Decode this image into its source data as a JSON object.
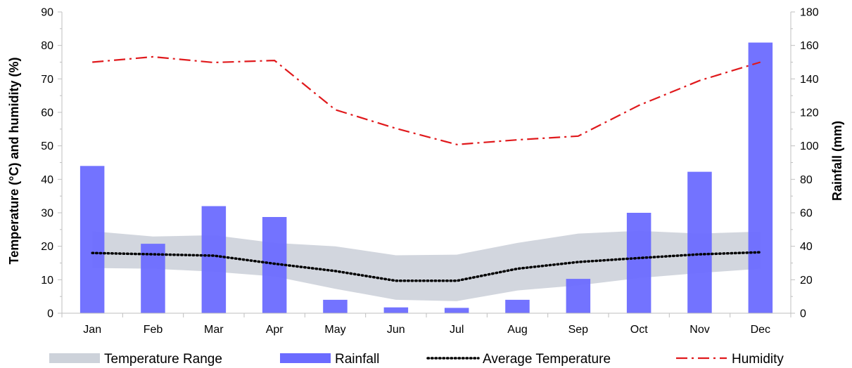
{
  "chart_data": {
    "type": "bar",
    "categories": [
      "Jan",
      "Feb",
      "Mar",
      "Apr",
      "May",
      "Jun",
      "Jul",
      "Aug",
      "Sep",
      "Oct",
      "Nov",
      "Dec"
    ],
    "y_left": {
      "label": "Temperature (°C) and humidity (%)",
      "ylim": [
        0,
        90
      ],
      "ticks": [
        "0",
        "10",
        "20",
        "30",
        "40",
        "50",
        "60",
        "70",
        "80",
        "90"
      ]
    },
    "y_right": {
      "label": "Rainfall (mm)",
      "ylim": [
        0,
        180
      ],
      "ticks": [
        "0",
        "20",
        "40",
        "60",
        "80",
        "100",
        "120",
        "140",
        "160",
        "180"
      ]
    },
    "grid": false,
    "legend_position": "bottom",
    "series": [
      {
        "name": "Temperature Range",
        "type": "area-band",
        "axis": "left",
        "color": "#cdd2da",
        "low": [
          13.5,
          13.3,
          12.4,
          11.0,
          7.3,
          4.0,
          3.6,
          6.8,
          8.3,
          10.5,
          12.0,
          13.3
        ],
        "high": [
          24.5,
          22.9,
          23.3,
          21.0,
          20.0,
          17.3,
          17.5,
          21.0,
          23.8,
          24.6,
          23.8,
          24.4
        ]
      },
      {
        "name": "Rainfall",
        "type": "bar",
        "axis": "right",
        "color": "#6b6bff",
        "values": [
          88,
          41.5,
          64,
          57.5,
          8,
          3.5,
          3.2,
          8,
          20.5,
          60,
          84.5,
          161.7
        ]
      },
      {
        "name": "Average Temperature",
        "type": "line",
        "style": "dotted",
        "axis": "left",
        "color": "#000000",
        "values": [
          18.0,
          17.6,
          17.2,
          14.8,
          12.6,
          9.7,
          9.7,
          13.3,
          15.3,
          16.5,
          17.6,
          18.2
        ]
      },
      {
        "name": "Humidity",
        "type": "line",
        "style": "dash-dot",
        "axis": "left",
        "color": "#e0191c",
        "values": [
          75.0,
          76.6,
          74.9,
          75.5,
          60.8,
          55.2,
          50.4,
          51.8,
          52.9,
          62.1,
          69.5,
          75.0
        ]
      }
    ]
  }
}
